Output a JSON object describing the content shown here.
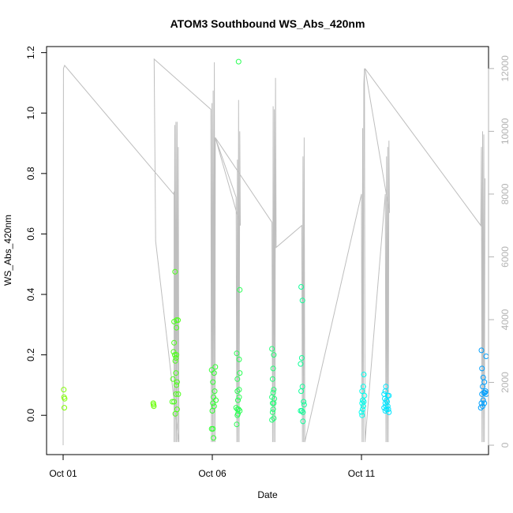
{
  "chart_data": {
    "type": "scatter",
    "title": "ATOM3 Southbound WS_Abs_420nm",
    "xlabel": "Date",
    "ylabel": "WS_Abs_420nm",
    "x_ticks": [
      "Oct 01",
      "Oct 06",
      "Oct 11"
    ],
    "x_range_days": [
      0,
      14.5
    ],
    "ylim": [
      -0.13,
      1.22
    ],
    "y_ticks": [
      "0.0",
      "0.2",
      "0.4",
      "0.6",
      "0.8",
      "1.0",
      "1.2"
    ],
    "y_tick_values": [
      0.0,
      0.2,
      0.4,
      0.6,
      0.8,
      1.0,
      1.2
    ],
    "y2_range": [
      -300,
      12700
    ],
    "y2_ticks": [
      "0",
      "2000",
      "4000",
      "6000",
      "8000",
      "10000",
      "12000"
    ],
    "y2_tick_values": [
      0,
      2000,
      4000,
      6000,
      8000,
      10000,
      12000
    ],
    "grid": false,
    "colors": {
      "altitude_line": "#bebebe",
      "axis": "#000000",
      "right_axis": "#b3b3b3"
    },
    "series": [
      {
        "color": "#80ff00",
        "points": [
          [
            0.02,
            0.085
          ],
          [
            0.03,
            0.06
          ],
          [
            0.05,
            0.055
          ],
          [
            0.04,
            0.025
          ]
        ]
      },
      {
        "color": "#66ff00",
        "points": [
          [
            3.02,
            0.04
          ],
          [
            3.03,
            0.035
          ],
          [
            3.04,
            0.03
          ]
        ]
      },
      {
        "color": "#4dff1a",
        "points": [
          [
            3.75,
            0.475
          ],
          [
            3.72,
            0.31
          ],
          [
            3.8,
            0.315
          ],
          [
            3.85,
            0.315
          ],
          [
            3.7,
            0.21
          ],
          [
            3.74,
            0.2
          ],
          [
            3.78,
            0.19
          ],
          [
            3.72,
            0.24
          ],
          [
            3.76,
            0.18
          ],
          [
            3.8,
            0.2
          ],
          [
            3.78,
            0.14
          ],
          [
            3.82,
            0.11
          ],
          [
            3.8,
            0.1
          ],
          [
            3.68,
            0.12
          ],
          [
            3.86,
            0.07
          ],
          [
            3.78,
            0.07
          ],
          [
            3.72,
            0.045
          ],
          [
            3.66,
            0.045
          ],
          [
            3.82,
            0.02
          ],
          [
            3.76,
            0.005
          ],
          [
            3.8,
            0.29
          ]
        ]
      },
      {
        "color": "#33ff33",
        "points": [
          [
            4.98,
            0.15
          ],
          [
            5.1,
            0.16
          ],
          [
            5.06,
            0.14
          ],
          [
            5.02,
            0.11
          ],
          [
            5.08,
            0.08
          ],
          [
            5.04,
            0.06
          ],
          [
            5.02,
            0.04
          ],
          [
            5.06,
            0.03
          ],
          [
            5.0,
            0.015
          ],
          [
            4.98,
            -0.045
          ],
          [
            5.02,
            -0.045
          ],
          [
            5.04,
            -0.075
          ],
          [
            5.12,
            0.05
          ]
        ]
      },
      {
        "color": "#2bff55",
        "points": [
          [
            5.88,
            1.17
          ],
          [
            5.82,
            0.205
          ],
          [
            5.92,
            0.415
          ],
          [
            5.9,
            0.185
          ],
          [
            5.84,
            0.12
          ],
          [
            5.92,
            0.14
          ],
          [
            5.9,
            0.085
          ],
          [
            5.84,
            0.08
          ],
          [
            5.9,
            0.06
          ],
          [
            5.86,
            0.05
          ],
          [
            5.8,
            0.025
          ],
          [
            5.84,
            0.02
          ],
          [
            5.88,
            0.02
          ],
          [
            5.92,
            0.015
          ],
          [
            5.86,
            0.005
          ],
          [
            5.84,
            0.0
          ],
          [
            5.82,
            -0.03
          ]
        ]
      },
      {
        "color": "#22ff77",
        "points": [
          [
            7.0,
            0.22
          ],
          [
            7.06,
            0.2
          ],
          [
            7.04,
            0.155
          ],
          [
            7.02,
            0.12
          ],
          [
            7.06,
            0.085
          ],
          [
            7.04,
            0.075
          ],
          [
            7.0,
            0.06
          ],
          [
            7.08,
            0.055
          ],
          [
            7.02,
            0.04
          ],
          [
            7.06,
            0.04
          ],
          [
            7.04,
            0.02
          ],
          [
            7.02,
            0.01
          ],
          [
            7.0,
            -0.015
          ],
          [
            7.06,
            -0.01
          ]
        ]
      },
      {
        "color": "#11ff99",
        "points": [
          [
            7.98,
            0.425
          ],
          [
            8.02,
            0.38
          ],
          [
            8.0,
            0.19
          ],
          [
            7.96,
            0.17
          ],
          [
            8.02,
            0.095
          ],
          [
            7.98,
            0.08
          ],
          [
            8.06,
            0.045
          ],
          [
            8.08,
            0.035
          ],
          [
            7.96,
            0.015
          ],
          [
            8.0,
            0.015
          ],
          [
            8.04,
            0.01
          ],
          [
            8.04,
            -0.02
          ]
        ]
      },
      {
        "color": "#00ffee",
        "points": [
          [
            10.08,
            0.135
          ],
          [
            10.06,
            0.095
          ],
          [
            10.02,
            0.08
          ],
          [
            10.1,
            0.065
          ],
          [
            10.04,
            0.05
          ],
          [
            10.08,
            0.045
          ],
          [
            10.02,
            0.04
          ],
          [
            10.06,
            0.03
          ],
          [
            10.04,
            0.02
          ],
          [
            10.0,
            0.01
          ],
          [
            10.02,
            0.0
          ]
        ]
      },
      {
        "color": "#00e5ff",
        "points": [
          [
            10.82,
            0.095
          ],
          [
            10.8,
            0.08
          ],
          [
            10.76,
            0.07
          ],
          [
            10.88,
            0.065
          ],
          [
            10.92,
            0.065
          ],
          [
            10.78,
            0.055
          ],
          [
            10.84,
            0.05
          ],
          [
            10.86,
            0.045
          ],
          [
            10.8,
            0.04
          ],
          [
            10.82,
            0.03
          ],
          [
            10.88,
            0.03
          ],
          [
            10.76,
            0.025
          ],
          [
            10.84,
            0.02
          ],
          [
            10.9,
            0.02
          ],
          [
            10.8,
            0.015
          ],
          [
            10.92,
            0.01
          ]
        ]
      },
      {
        "color": "#00a0ff",
        "points": [
          [
            14.02,
            0.215
          ],
          [
            14.18,
            0.195
          ],
          [
            14.04,
            0.155
          ],
          [
            14.08,
            0.125
          ],
          [
            14.12,
            0.11
          ],
          [
            14.06,
            0.095
          ],
          [
            14.16,
            0.08
          ],
          [
            14.1,
            0.075
          ],
          [
            14.14,
            0.075
          ],
          [
            14.04,
            0.07
          ],
          [
            14.18,
            0.07
          ],
          [
            14.08,
            0.05
          ],
          [
            14.02,
            0.04
          ],
          [
            14.12,
            0.04
          ],
          [
            14.06,
            0.03
          ],
          [
            14.0,
            0.025
          ]
        ]
      }
    ],
    "altitude_line": [
      [
        0.0,
        0
      ],
      [
        0.01,
        12000
      ],
      [
        0.05,
        12100
      ],
      [
        3.7,
        8000
      ],
      [
        3.72,
        8080
      ],
      [
        3.72,
        100
      ],
      [
        3.74,
        10200
      ],
      [
        3.76,
        100
      ],
      [
        3.78,
        10300
      ],
      [
        3.8,
        100
      ],
      [
        3.82,
        10300
      ],
      [
        3.84,
        100
      ],
      [
        3.86,
        9500
      ],
      [
        3.88,
        100
      ],
      [
        3.1,
        6500
      ],
      [
        3.05,
        12300
      ],
      [
        4.95,
        10700
      ],
      [
        4.97,
        100
      ],
      [
        4.99,
        10900
      ],
      [
        5.01,
        100
      ],
      [
        5.03,
        11300
      ],
      [
        5.05,
        100
      ],
      [
        5.07,
        12200
      ],
      [
        5.09,
        100
      ],
      [
        5.1,
        9800
      ],
      [
        5.8,
        7900
      ],
      [
        5.82,
        100
      ],
      [
        5.84,
        9100
      ],
      [
        5.86,
        100
      ],
      [
        5.88,
        11000
      ],
      [
        5.9,
        100
      ],
      [
        5.92,
        10000
      ],
      [
        5.94,
        7000
      ],
      [
        5.1,
        9800
      ],
      [
        7.0,
        7100
      ],
      [
        7.02,
        100
      ],
      [
        7.04,
        10800
      ],
      [
        7.06,
        100
      ],
      [
        7.08,
        10700
      ],
      [
        7.1,
        100
      ],
      [
        7.12,
        11700
      ],
      [
        7.14,
        6300
      ],
      [
        8.0,
        7000
      ],
      [
        8.02,
        100
      ],
      [
        8.04,
        9200
      ],
      [
        8.06,
        100
      ],
      [
        8.08,
        9800
      ],
      [
        8.1,
        100
      ],
      [
        10.0,
        8000
      ],
      [
        10.02,
        100
      ],
      [
        10.04,
        10100
      ],
      [
        10.06,
        100
      ],
      [
        10.08,
        11500
      ],
      [
        10.1,
        12000
      ],
      [
        10.12,
        100
      ],
      [
        10.8,
        8000
      ],
      [
        10.82,
        100
      ],
      [
        10.84,
        9200
      ],
      [
        10.86,
        100
      ],
      [
        10.88,
        9500
      ],
      [
        10.9,
        100
      ],
      [
        10.92,
        9700
      ],
      [
        10.94,
        7400
      ],
      [
        10.12,
        12000
      ],
      [
        14.0,
        7000
      ],
      [
        14.02,
        9500
      ],
      [
        14.04,
        100
      ],
      [
        14.06,
        10000
      ],
      [
        14.08,
        100
      ],
      [
        14.1,
        9900
      ],
      [
        14.12,
        100
      ],
      [
        14.14,
        8500
      ]
    ]
  }
}
